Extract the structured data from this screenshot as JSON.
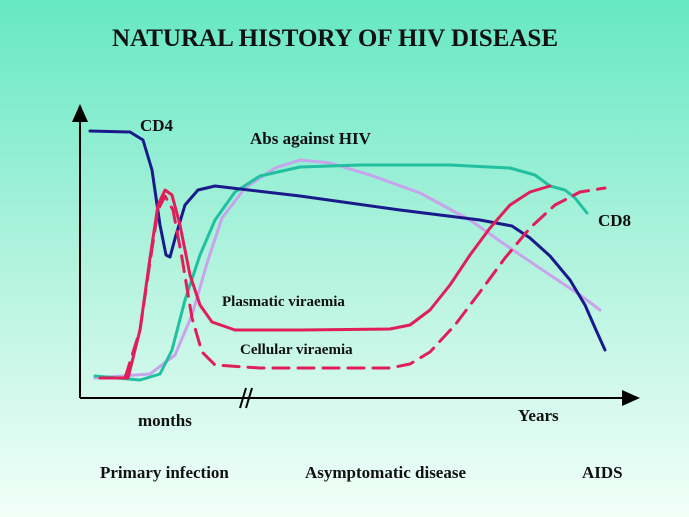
{
  "title": "NATURAL HISTORY OF HIV DISEASE",
  "curve_labels": {
    "cd4": "CD4",
    "abs": "Abs against HIV",
    "cd8": "CD8",
    "plasmatic": "Plasmatic viraemia",
    "cellular": "Cellular viraemia"
  },
  "axis_labels": {
    "x_start": "months",
    "x_end": "Years"
  },
  "phases": [
    "Primary infection",
    "Asymptomatic disease",
    "AIDS"
  ]
}
